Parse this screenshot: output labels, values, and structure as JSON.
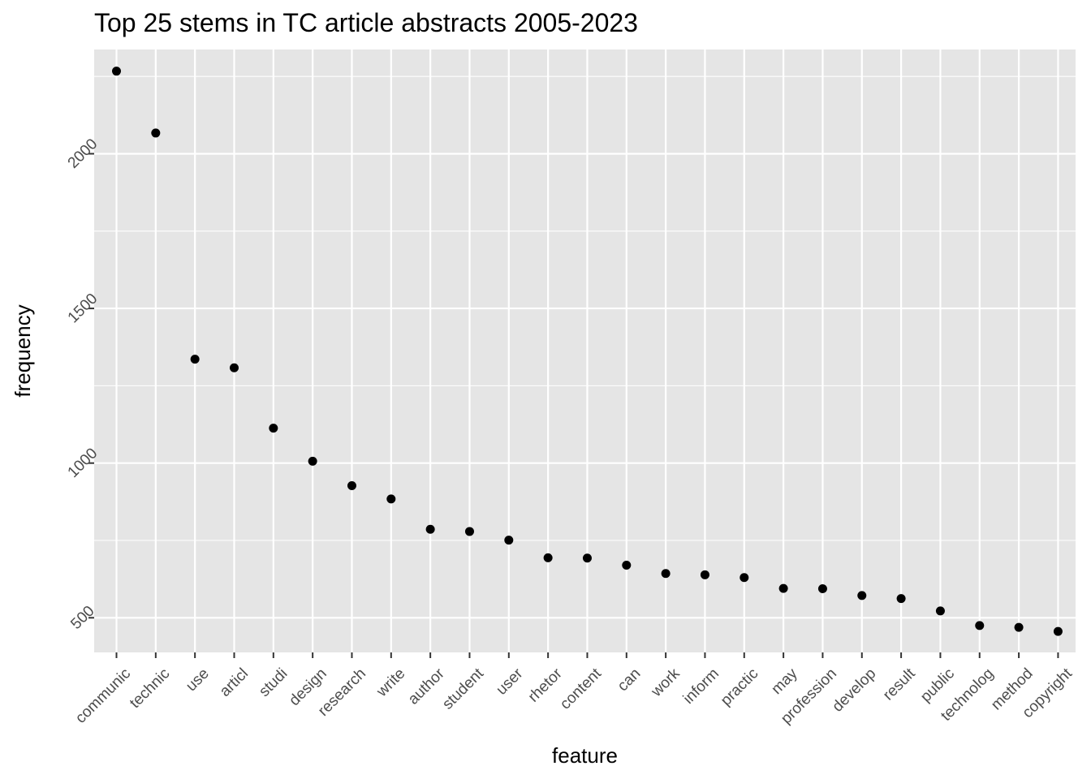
{
  "chart_data": {
    "type": "scatter",
    "title": "Top 25 stems in TC article abstracts 2005-2023",
    "xlabel": "feature",
    "ylabel": "frequency",
    "categories": [
      "communic",
      "technic",
      "use",
      "articl",
      "studi",
      "design",
      "research",
      "write",
      "author",
      "student",
      "user",
      "rhetor",
      "content",
      "can",
      "work",
      "inform",
      "practic",
      "may",
      "profession",
      "develop",
      "result",
      "public",
      "technolog",
      "method",
      "copyright"
    ],
    "values": [
      2267,
      2067,
      1336,
      1308,
      1113,
      1006,
      927,
      884,
      786,
      779,
      751,
      694,
      693,
      670,
      643,
      639,
      630,
      595,
      594,
      572,
      562,
      522,
      475,
      469,
      456
    ],
    "ylim": [
      388,
      2337
    ],
    "yticks": [
      500,
      1000,
      1500,
      2000
    ],
    "point_color": "#000000",
    "panel_background": "#e5e5e5",
    "grid": true,
    "legend": "none"
  }
}
